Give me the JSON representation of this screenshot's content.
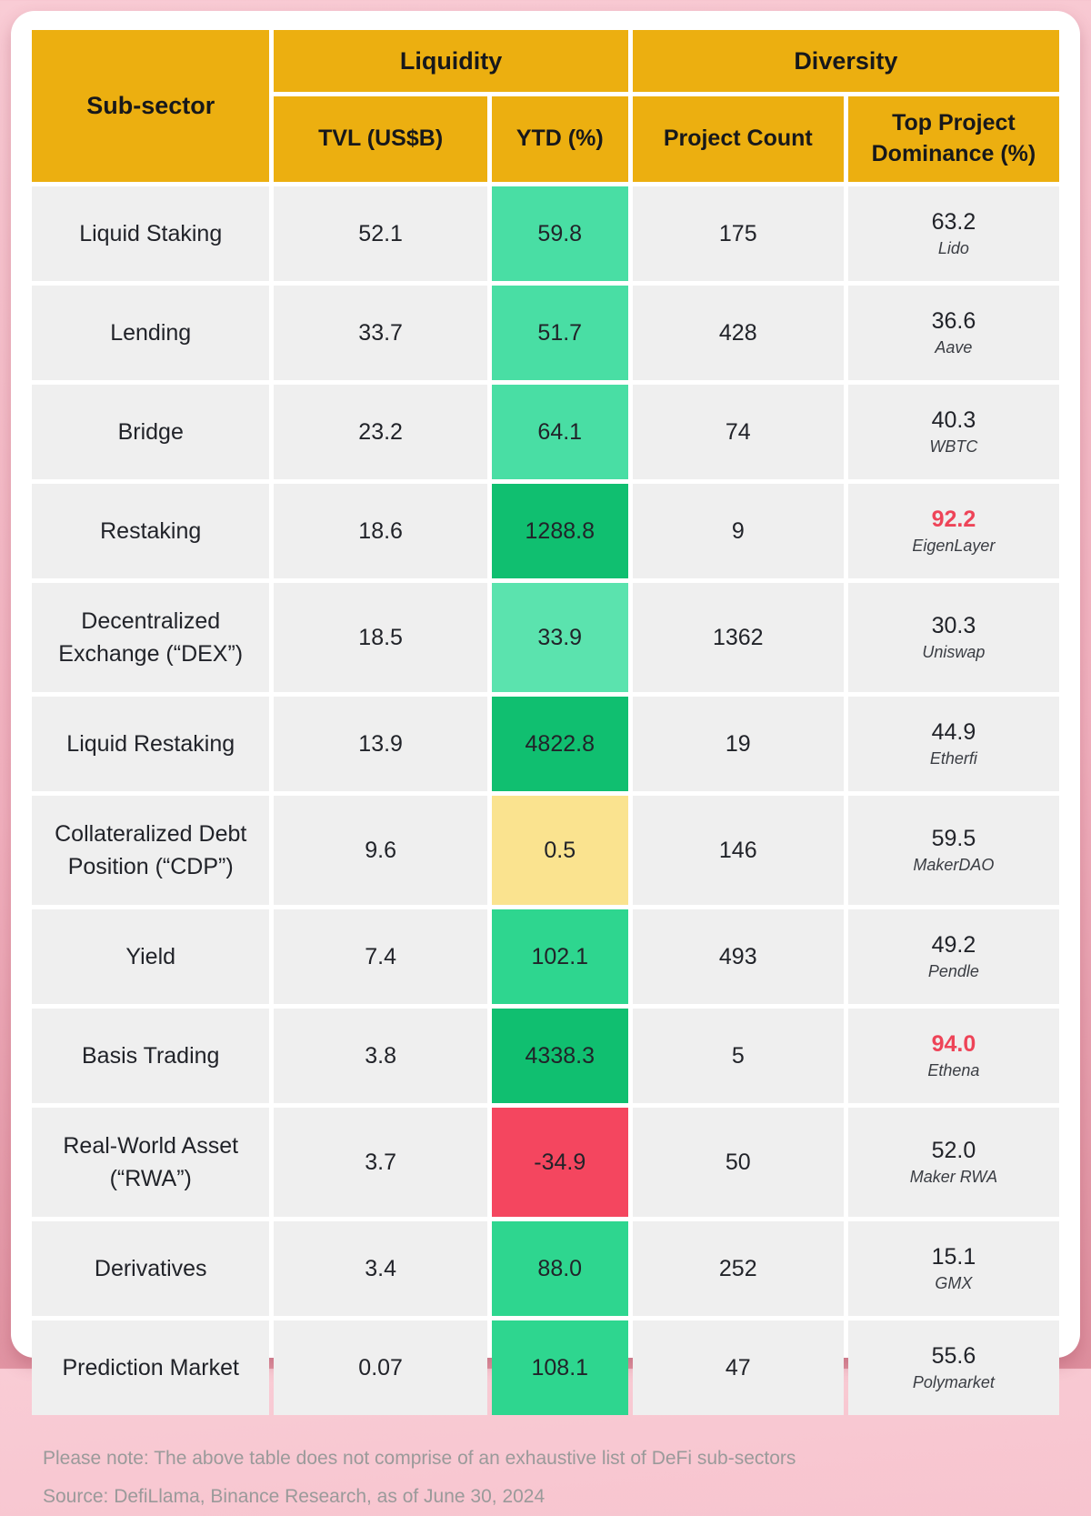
{
  "colors": {
    "header_bg": "#ECAF10",
    "cell_bg": "#EFEFEF",
    "card_bg": "#FFFFFF",
    "page_bg_top": "#F9CCD5",
    "page_bg_bottom": "#DE8F9E",
    "text_dark": "#212329",
    "note_text": "#9A9A9A",
    "red_text": "#EE4458",
    "green_light": "#5BE3AE",
    "green_mid": "#49DEA4",
    "green_strong": "#2ED68F",
    "green_dark": "#10BF70",
    "yellow": "#FAE38F",
    "red": "#F4465F"
  },
  "table": {
    "header": {
      "sub_sector": "Sub-sector",
      "liquidity": "Liquidity",
      "diversity": "Diversity",
      "tvl": "TVL (US$B)",
      "ytd": "YTD (%)",
      "project_count": "Project Count",
      "top_dominance": "Top Project Dominance (%)"
    },
    "rows": [
      {
        "sector": "Liquid Staking",
        "tvl": "52.1",
        "ytd": "59.8",
        "ytd_tone": "green_mid",
        "count": "175",
        "dominance": "63.2",
        "project": "Lido",
        "dominance_red": false,
        "tall": false
      },
      {
        "sector": "Lending",
        "tvl": "33.7",
        "ytd": "51.7",
        "ytd_tone": "green_mid",
        "count": "428",
        "dominance": "36.6",
        "project": "Aave",
        "dominance_red": false,
        "tall": false
      },
      {
        "sector": "Bridge",
        "tvl": "23.2",
        "ytd": "64.1",
        "ytd_tone": "green_mid",
        "count": "74",
        "dominance": "40.3",
        "project": "WBTC",
        "dominance_red": false,
        "tall": false
      },
      {
        "sector": "Restaking",
        "tvl": "18.6",
        "ytd": "1288.8",
        "ytd_tone": "green_dark",
        "count": "9",
        "dominance": "92.2",
        "project": "EigenLayer",
        "dominance_red": true,
        "tall": false
      },
      {
        "sector": "Decentralized Exchange (“DEX”)",
        "tvl": "18.5",
        "ytd": "33.9",
        "ytd_tone": "green_light",
        "count": "1362",
        "dominance": "30.3",
        "project": "Uniswap",
        "dominance_red": false,
        "tall": true
      },
      {
        "sector": "Liquid Restaking",
        "tvl": "13.9",
        "ytd": "4822.8",
        "ytd_tone": "green_dark",
        "count": "19",
        "dominance": "44.9",
        "project": "Etherfi",
        "dominance_red": false,
        "tall": false
      },
      {
        "sector": "Collateralized Debt Position (“CDP”)",
        "tvl": "9.6",
        "ytd": "0.5",
        "ytd_tone": "yellow",
        "count": "146",
        "dominance": "59.5",
        "project": "MakerDAO",
        "dominance_red": false,
        "tall": true
      },
      {
        "sector": "Yield",
        "tvl": "7.4",
        "ytd": "102.1",
        "ytd_tone": "green_strong",
        "count": "493",
        "dominance": "49.2",
        "project": "Pendle",
        "dominance_red": false,
        "tall": false
      },
      {
        "sector": "Basis Trading",
        "tvl": "3.8",
        "ytd": "4338.3",
        "ytd_tone": "green_dark",
        "count": "5",
        "dominance": "94.0",
        "project": "Ethena",
        "dominance_red": true,
        "tall": false
      },
      {
        "sector": "Real-World Asset (“RWA”)",
        "tvl": "3.7",
        "ytd": "-34.9",
        "ytd_tone": "red",
        "count": "50",
        "dominance": "52.0",
        "project": "Maker RWA",
        "dominance_red": false,
        "tall": true
      },
      {
        "sector": "Derivatives",
        "tvl": "3.4",
        "ytd": "88.0",
        "ytd_tone": "green_strong",
        "count": "252",
        "dominance": "15.1",
        "project": "GMX",
        "dominance_red": false,
        "tall": false
      },
      {
        "sector": "Prediction Market",
        "tvl": "0.07",
        "ytd": "108.1",
        "ytd_tone": "green_strong",
        "count": "47",
        "dominance": "55.6",
        "project": "Polymarket",
        "dominance_red": false,
        "tall": false
      }
    ]
  },
  "notes": {
    "line1": "Please note: The above table does not comprise of an exhaustive list of DeFi sub-sectors",
    "line2": "Source: DefiLlama, Binance Research, as of June 30, 2024"
  },
  "chart_data": {
    "type": "table",
    "column_groups": {
      "Liquidity": [
        "TVL (US$B)",
        "YTD (%)"
      ],
      "Diversity": [
        "Project Count",
        "Top Project Dominance (%)"
      ]
    },
    "columns": [
      "Sub-sector",
      "TVL (US$B)",
      "YTD (%)",
      "Project Count",
      "Top Project Dominance (%)",
      "Top Project"
    ],
    "rows": [
      [
        "Liquid Staking",
        52.1,
        59.8,
        175,
        63.2,
        "Lido"
      ],
      [
        "Lending",
        33.7,
        51.7,
        428,
        36.6,
        "Aave"
      ],
      [
        "Bridge",
        23.2,
        64.1,
        74,
        40.3,
        "WBTC"
      ],
      [
        "Restaking",
        18.6,
        1288.8,
        9,
        92.2,
        "EigenLayer"
      ],
      [
        "Decentralized Exchange (“DEX”)",
        18.5,
        33.9,
        1362,
        30.3,
        "Uniswap"
      ],
      [
        "Liquid Restaking",
        13.9,
        4822.8,
        19,
        44.9,
        "Etherfi"
      ],
      [
        "Collateralized Debt Position (“CDP”)",
        9.6,
        0.5,
        146,
        59.5,
        "MakerDAO"
      ],
      [
        "Yield",
        7.4,
        102.1,
        493,
        49.2,
        "Pendle"
      ],
      [
        "Basis Trading",
        3.8,
        4338.3,
        5,
        94.0,
        "Ethena"
      ],
      [
        "Real-World Asset (“RWA”)",
        3.7,
        -34.9,
        50,
        52.0,
        "Maker RWA"
      ],
      [
        "Derivatives",
        3.4,
        88.0,
        252,
        15.1,
        "GMX"
      ],
      [
        "Prediction Market",
        0.07,
        108.1,
        47,
        55.6,
        "Polymarket"
      ]
    ]
  }
}
